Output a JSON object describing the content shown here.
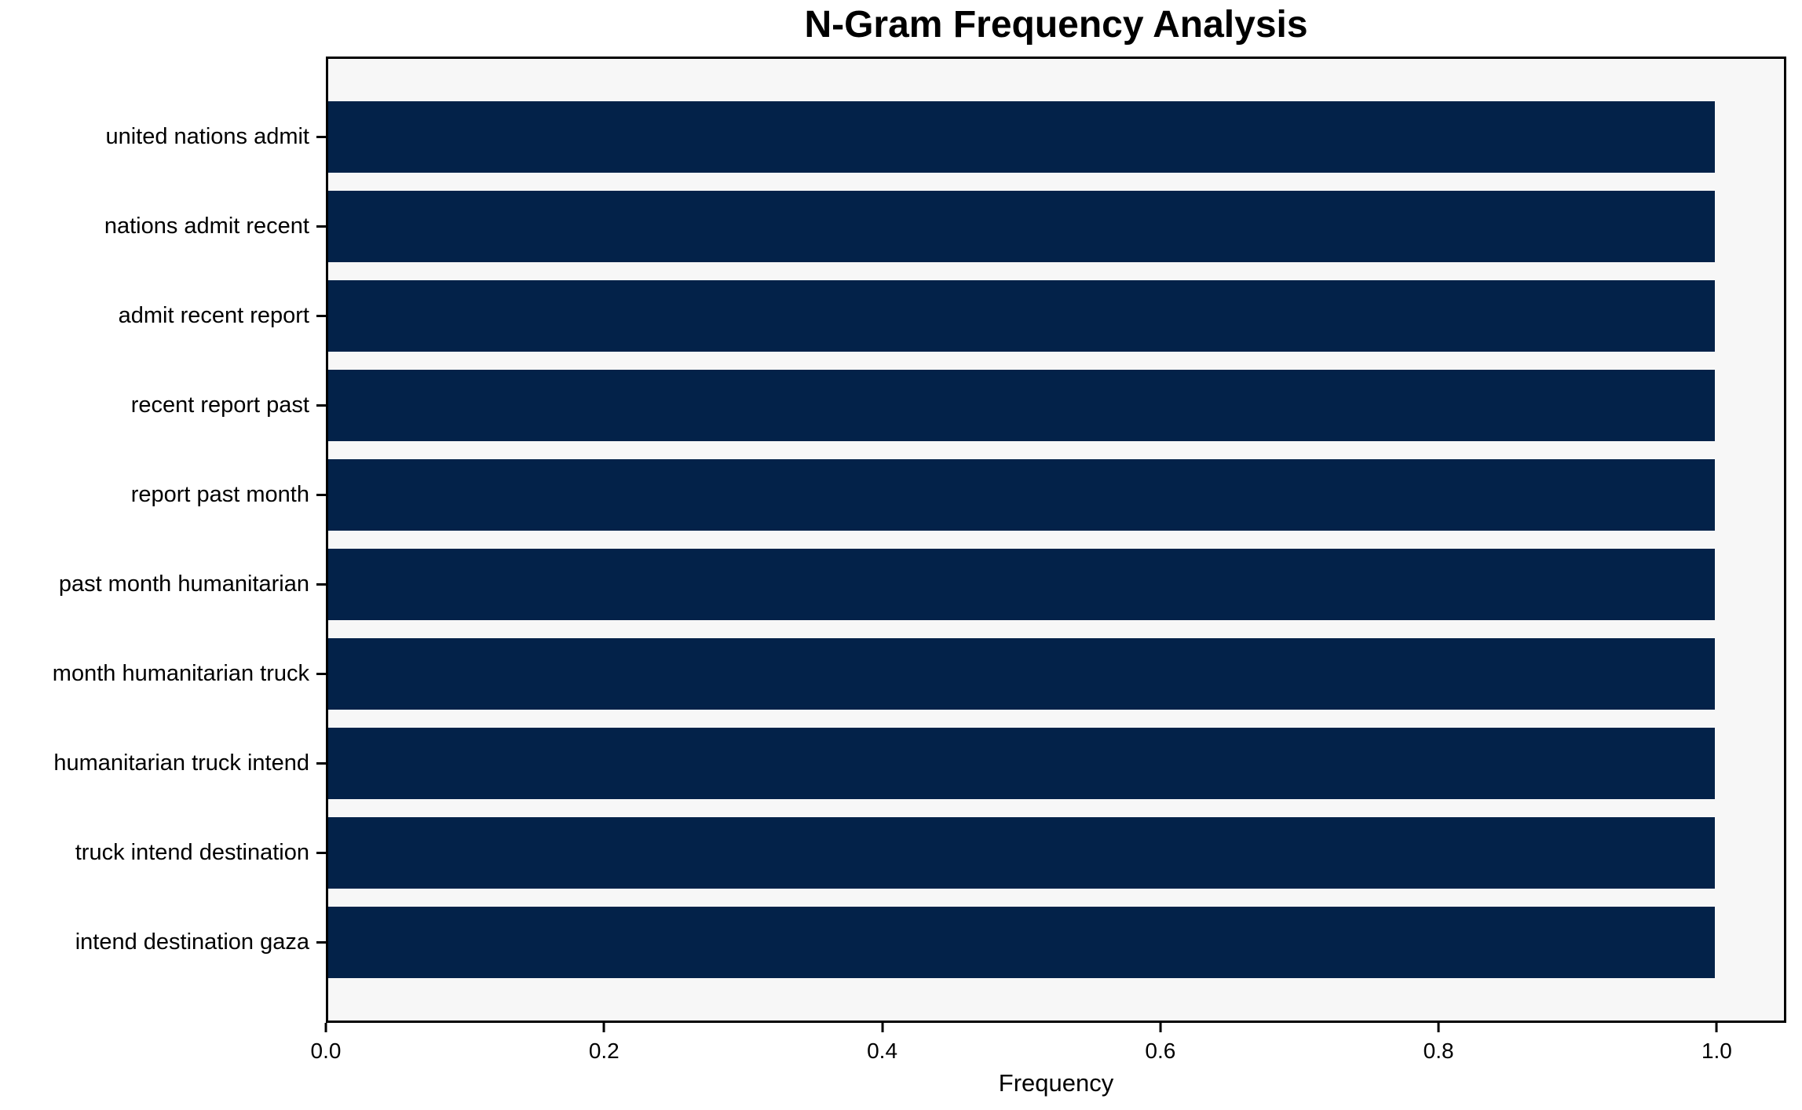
{
  "chart_data": {
    "type": "bar",
    "orientation": "horizontal",
    "title": "N-Gram Frequency Analysis",
    "xlabel": "Frequency",
    "categories": [
      "united nations admit",
      "nations admit recent",
      "admit recent report",
      "recent report past",
      "report past month",
      "past month humanitarian",
      "month humanitarian truck",
      "humanitarian truck intend",
      "truck intend destination",
      "intend destination gaza"
    ],
    "values": [
      1.0,
      1.0,
      1.0,
      1.0,
      1.0,
      1.0,
      1.0,
      1.0,
      1.0,
      1.0
    ],
    "xlim": [
      0.0,
      1.05
    ],
    "x_ticks": [
      0.0,
      0.2,
      0.4,
      0.6,
      0.8,
      1.0
    ],
    "x_tick_labels": [
      "0.0",
      "0.2",
      "0.4",
      "0.6",
      "0.8",
      "1.0"
    ],
    "bar_color": "#032249",
    "plot_bg": "#f7f7f7",
    "grid": false,
    "legend": "none"
  }
}
